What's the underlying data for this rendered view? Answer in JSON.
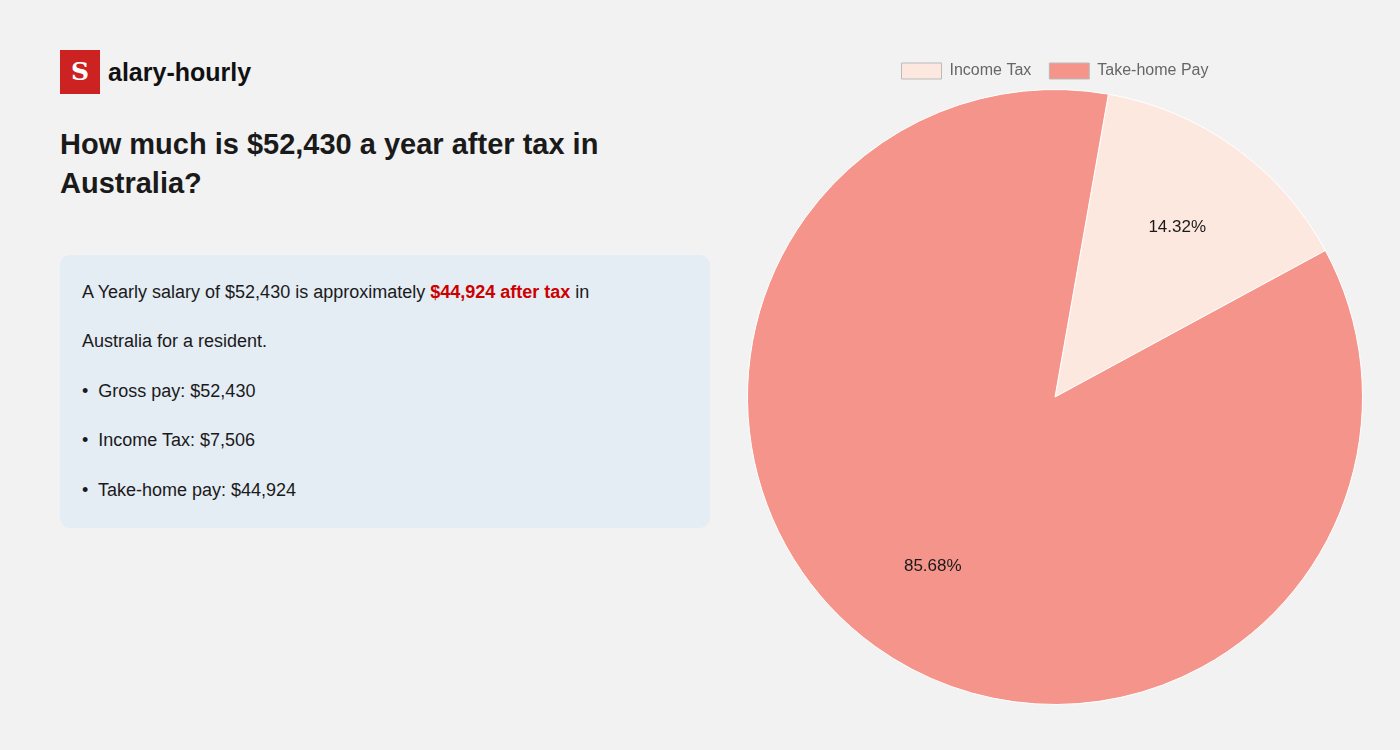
{
  "chart_data": {
    "type": "pie",
    "title": "How much is $52,430 a year after tax in Australia?",
    "categories": [
      "Income Tax",
      "Take-home Pay"
    ],
    "values": [
      14.32,
      85.68
    ],
    "value_labels": [
      "14.32%",
      "85.68%"
    ],
    "colors": [
      "#fce8df",
      "#f4948a"
    ],
    "data_labels": true,
    "legend": "top",
    "annotations": [
      [
        {
          "text": "S",
          "color": "#cc2222"
        },
        {
          "text": "alary-hourly"
        }
      ],
      [
        {
          "text": "A Yearly salary of $52,430 is approximately "
        },
        {
          "text": "$44,924 after tax",
          "color": "#cc0000"
        },
        {
          "text": " in"
        }
      ],
      [
        {
          "text": "Australia for a resident."
        }
      ],
      [
        {
          "text": "•  Gross pay: $52,430"
        }
      ],
      [
        {
          "text": "•  Income Tax: $7,506"
        }
      ],
      [
        {
          "text": "•  Take-home pay: $44,924"
        }
      ]
    ]
  }
}
